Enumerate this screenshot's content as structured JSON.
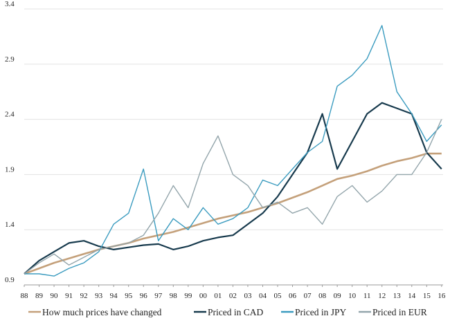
{
  "chart_data": {
    "type": "line",
    "title": "",
    "xlabel": "",
    "ylabel": "",
    "xlim": [
      1988,
      2016.1
    ],
    "ylim": [
      0.9,
      3.4
    ],
    "grid": "horizontal",
    "legend": "bottom",
    "y_ticks": [
      0.9,
      1.4,
      1.9,
      2.4,
      2.9,
      3.4
    ],
    "y_tick_labels": [
      "0.9",
      "1.4",
      "1.9",
      "2.4",
      "2.9",
      "3.4"
    ],
    "x_tick_values": [
      1988,
      1989,
      1990,
      1991,
      1992,
      1993,
      1994,
      1995,
      1996,
      1997,
      1998,
      1999,
      2000,
      2001,
      2002,
      2003,
      2004,
      2005,
      2006,
      2007,
      2008,
      2009,
      2010,
      2011,
      2012,
      2013,
      2014,
      2015,
      2016
    ],
    "x_tick_labels": [
      "88",
      "89",
      "90",
      "91",
      "92",
      "93",
      "94",
      "95",
      "96",
      "97",
      "98",
      "99",
      "00",
      "01",
      "02",
      "03",
      "04",
      "05",
      "06",
      "07",
      "08",
      "09",
      "10",
      "11",
      "12",
      "13",
      "14",
      "15",
      "16"
    ],
    "series": [
      {
        "name": "How much prices have changed",
        "color": "#c4a07a",
        "x": [
          1988,
          1989,
          1990,
          1991,
          1992,
          1993,
          1994,
          1995,
          1996,
          1997,
          1998,
          1999,
          2000,
          2001,
          2002,
          2003,
          2004,
          2005,
          2006,
          2007,
          2008,
          2009,
          2010,
          2011,
          2012,
          2013,
          2014,
          2015,
          2016
        ],
        "y": [
          1.0,
          1.05,
          1.1,
          1.14,
          1.18,
          1.22,
          1.25,
          1.28,
          1.32,
          1.35,
          1.38,
          1.42,
          1.46,
          1.5,
          1.53,
          1.56,
          1.6,
          1.64,
          1.69,
          1.74,
          1.8,
          1.86,
          1.89,
          1.93,
          1.98,
          2.02,
          2.05,
          2.09,
          2.09
        ]
      },
      {
        "name": "Priced in CAD",
        "color": "#173a4d",
        "x": [
          1988,
          1989,
          1990,
          1991,
          1992,
          1993,
          1994,
          1995,
          1996,
          1997,
          1998,
          1999,
          2000,
          2001,
          2002,
          2003,
          2004,
          2005,
          2006,
          2007,
          2008,
          2009,
          2010,
          2011,
          2012,
          2013,
          2014,
          2015,
          2016
        ],
        "y": [
          1.0,
          1.12,
          1.2,
          1.28,
          1.3,
          1.25,
          1.22,
          1.24,
          1.26,
          1.27,
          1.22,
          1.25,
          1.3,
          1.33,
          1.35,
          1.45,
          1.55,
          1.7,
          1.9,
          2.1,
          2.45,
          1.95,
          2.2,
          2.45,
          2.55,
          2.5,
          2.45,
          2.1,
          1.95
        ]
      },
      {
        "name": "Priced in JPY",
        "color": "#3a9bbf",
        "x": [
          1988,
          1989,
          1990,
          1991,
          1992,
          1993,
          1994,
          1995,
          1996,
          1997,
          1998,
          1999,
          2000,
          2001,
          2002,
          2003,
          2004,
          2005,
          2006,
          2007,
          2008,
          2009,
          2010,
          2011,
          2012,
          2013,
          2014,
          2015,
          2016
        ],
        "y": [
          1.0,
          1.0,
          0.98,
          1.05,
          1.1,
          1.2,
          1.45,
          1.55,
          1.95,
          1.3,
          1.5,
          1.4,
          1.6,
          1.45,
          1.5,
          1.6,
          1.85,
          1.8,
          1.95,
          2.1,
          2.2,
          2.7,
          2.8,
          2.95,
          3.25,
          2.65,
          2.45,
          2.2,
          2.35
        ]
      },
      {
        "name": "Priced in EUR",
        "color": "#93a5ab",
        "x": [
          1988,
          1989,
          1990,
          1991,
          1992,
          1993,
          1994,
          1995,
          1996,
          1997,
          1998,
          1999,
          2000,
          2001,
          2002,
          2003,
          2004,
          2005,
          2006,
          2007,
          2008,
          2009,
          2010,
          2011,
          2012,
          2013,
          2014,
          2015,
          2016
        ],
        "y": [
          1.0,
          1.1,
          1.18,
          1.08,
          1.15,
          1.22,
          1.25,
          1.28,
          1.35,
          1.55,
          1.8,
          1.6,
          2.0,
          2.25,
          1.9,
          1.8,
          1.6,
          1.65,
          1.55,
          1.6,
          1.45,
          1.7,
          1.8,
          1.65,
          1.75,
          1.9,
          1.9,
          2.1,
          2.4
        ]
      }
    ]
  }
}
